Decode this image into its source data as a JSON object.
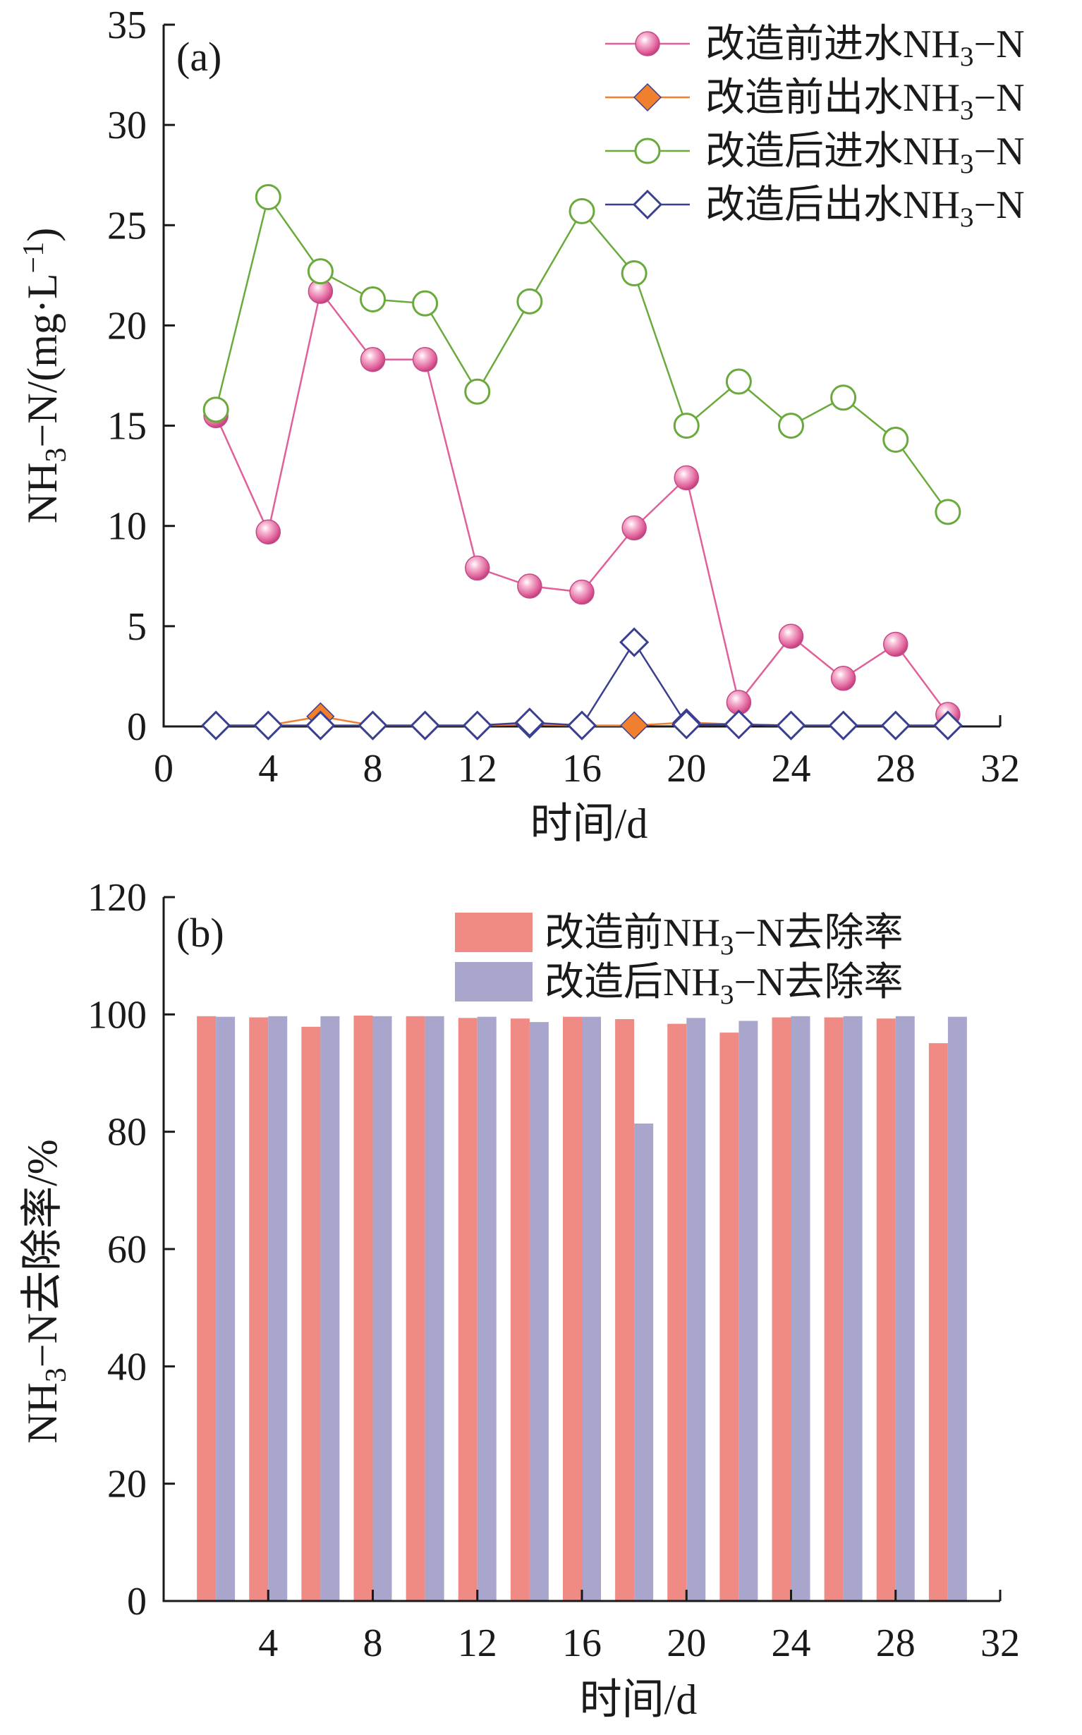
{
  "chart_data": [
    {
      "type": "line",
      "panel_label": "(a)",
      "xlabel": "时间/d",
      "ylabel_parts": [
        "NH",
        "3",
        "−N/(mg·L",
        "−1",
        ")"
      ],
      "xlim": [
        0,
        32
      ],
      "ylim": [
        0,
        35
      ],
      "xticks": [
        0,
        4,
        8,
        12,
        16,
        20,
        24,
        28,
        32
      ],
      "yticks": [
        0,
        5,
        10,
        15,
        20,
        25,
        30,
        35
      ],
      "x": [
        2,
        4,
        6,
        8,
        10,
        12,
        14,
        16,
        18,
        20,
        22,
        24,
        26,
        28,
        30
      ],
      "legend_position": "top-right",
      "series": [
        {
          "name_parts": [
            "改造前进水NH",
            "3",
            "−N"
          ],
          "marker": "sphere",
          "color": "#e0609a",
          "values": [
            15.5,
            9.7,
            21.7,
            18.3,
            18.3,
            7.9,
            7.0,
            6.7,
            9.9,
            12.4,
            1.2,
            4.5,
            2.4,
            4.1,
            0.6
          ]
        },
        {
          "name_parts": [
            "改造前出水NH",
            "3",
            "−N"
          ],
          "marker": "diamond-filled",
          "color": "#f07f2e",
          "values": [
            0.05,
            0.05,
            0.5,
            0.05,
            0.05,
            0.05,
            0.1,
            0.05,
            0.05,
            0.2,
            0.1,
            0.05,
            0.05,
            0.05,
            0.05
          ]
        },
        {
          "name_parts": [
            "改造后进水NH",
            "3",
            "−N"
          ],
          "marker": "circle-open",
          "color": "#6aaa3c",
          "values": [
            15.8,
            26.4,
            22.7,
            21.3,
            21.1,
            16.7,
            21.2,
            25.7,
            22.6,
            15.0,
            17.2,
            15.0,
            16.4,
            14.3,
            10.7
          ]
        },
        {
          "name_parts": [
            "改造后出水NH",
            "3",
            "−N"
          ],
          "marker": "diamond-open",
          "color": "#3b3f8f",
          "values": [
            0.05,
            0.05,
            0.05,
            0.05,
            0.05,
            0.05,
            0.2,
            0.05,
            4.2,
            0.1,
            0.1,
            0.05,
            0.05,
            0.05,
            0.05
          ]
        }
      ]
    },
    {
      "type": "bar",
      "panel_label": "(b)",
      "xlabel": "时间/d",
      "ylabel_parts": [
        "NH",
        "3",
        "−N去除率/%"
      ],
      "xlim": [
        0,
        32
      ],
      "ylim": [
        0,
        120
      ],
      "xticks": [
        4,
        8,
        12,
        16,
        20,
        24,
        28,
        32
      ],
      "yticks": [
        0,
        20,
        40,
        60,
        80,
        100,
        120
      ],
      "x": [
        2,
        4,
        6,
        8,
        10,
        12,
        14,
        16,
        18,
        20,
        22,
        24,
        26,
        28,
        30
      ],
      "legend_position": "top-right",
      "series": [
        {
          "name_parts": [
            "改造前NH",
            "3",
            "−N去除率"
          ],
          "color": "#f08a84",
          "values": [
            99.7,
            99.5,
            97.9,
            99.8,
            99.7,
            99.4,
            99.3,
            99.6,
            99.2,
            98.4,
            96.9,
            99.5,
            99.5,
            99.3,
            95.1
          ]
        },
        {
          "name_parts": [
            "改造后NH",
            "3",
            "−N去除率"
          ],
          "color": "#a9a6cd",
          "values": [
            99.6,
            99.7,
            99.7,
            99.7,
            99.7,
            99.6,
            98.7,
            99.6,
            81.4,
            99.4,
            98.9,
            99.7,
            99.7,
            99.7,
            99.6
          ]
        }
      ]
    }
  ]
}
